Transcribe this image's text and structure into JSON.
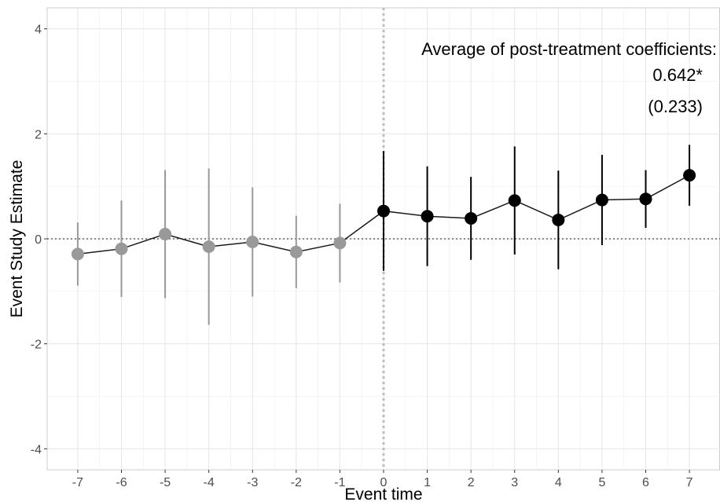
{
  "chart_data": {
    "type": "scatter",
    "title": "",
    "xlabel": "Event time",
    "ylabel": "Event Study Estimate",
    "xlim": [
      -7.7,
      7.7
    ],
    "ylim": [
      -4.4,
      4.4
    ],
    "x_ticks": [
      -7,
      -6,
      -5,
      -4,
      -3,
      -2,
      -1,
      0,
      1,
      2,
      3,
      4,
      5,
      6,
      7
    ],
    "x_tick_labels": [
      "-7",
      "-6",
      "-5",
      "-4",
      "-3",
      "-2",
      "-1",
      "0",
      "1",
      "2",
      "3",
      "4",
      "5",
      "6",
      "7"
    ],
    "y_ticks": [
      -4,
      -2,
      0,
      2,
      4
    ],
    "y_tick_labels": [
      "-4",
      "-2",
      "0",
      "2",
      "4"
    ],
    "grid": true,
    "reference_lines": {
      "horizontal_at": 0,
      "vertical_at": 0
    },
    "series": [
      {
        "role": "pre-treatment",
        "color": "#999999",
        "points": [
          {
            "x": -7,
            "y": -0.29,
            "lo": -0.89,
            "hi": 0.31
          },
          {
            "x": -6,
            "y": -0.19,
            "lo": -1.11,
            "hi": 0.73
          },
          {
            "x": -5,
            "y": 0.09,
            "lo": -1.13,
            "hi": 1.31
          },
          {
            "x": -4,
            "y": -0.15,
            "lo": -1.64,
            "hi": 1.34
          },
          {
            "x": -3,
            "y": -0.06,
            "lo": -1.1,
            "hi": 0.98
          },
          {
            "x": -2,
            "y": -0.25,
            "lo": -0.94,
            "hi": 0.44
          },
          {
            "x": -1,
            "y": -0.08,
            "lo": -0.83,
            "hi": 0.67
          }
        ]
      },
      {
        "role": "post-treatment",
        "color": "#000000",
        "points": [
          {
            "x": 0,
            "y": 0.53,
            "lo": -0.61,
            "hi": 1.67
          },
          {
            "x": 1,
            "y": 0.43,
            "lo": -0.52,
            "hi": 1.38
          },
          {
            "x": 2,
            "y": 0.39,
            "lo": -0.4,
            "hi": 1.18
          },
          {
            "x": 3,
            "y": 0.73,
            "lo": -0.3,
            "hi": 1.76
          },
          {
            "x": 4,
            "y": 0.36,
            "lo": -0.58,
            "hi": 1.3
          },
          {
            "x": 5,
            "y": 0.74,
            "lo": -0.12,
            "hi": 1.6
          },
          {
            "x": 6,
            "y": 0.76,
            "lo": 0.21,
            "hi": 1.31
          },
          {
            "x": 7,
            "y": 1.21,
            "lo": 0.63,
            "hi": 1.79
          }
        ]
      }
    ],
    "connecting_line_color": "#1a1a1a",
    "annotation": {
      "lines": [
        "Average of post-treatment coefficients:",
        "0.642*",
        "(0.233)"
      ],
      "position": "top-right"
    }
  }
}
